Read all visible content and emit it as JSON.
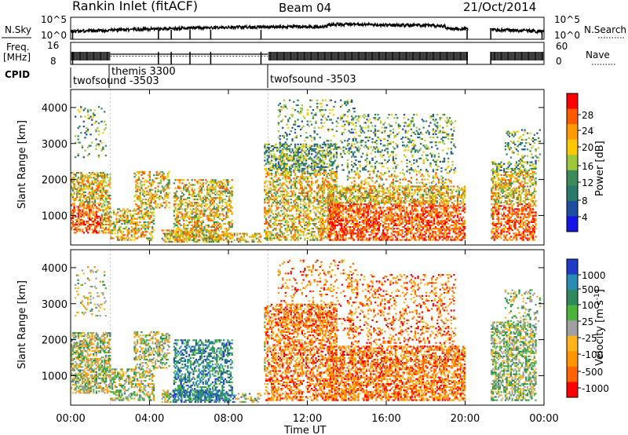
{
  "header": {
    "station": "Rankin Inlet (fitACF)",
    "beam": "Beam 04",
    "date": "21/Oct/2014"
  },
  "chart_data": [
    {
      "type": "line",
      "panel": "noise",
      "left_label": "N.Sky",
      "right_label": "N.Search",
      "left_ticks": [
        "10^5",
        "10^0"
      ],
      "right_ticks": [
        "10^5",
        "10^0"
      ],
      "scale": "log",
      "line_style": "solid black trace with data gaps near 00:00, 20:10-21:15"
    },
    {
      "type": "line",
      "panel": "frequency",
      "left_label_top": "Freq.",
      "left_label_unit": "[MHz]",
      "left_ticks": [
        "16",
        "8"
      ],
      "right_label": "Nave",
      "right_ticks": [
        "60",
        "0"
      ],
      "ylim": [
        8,
        16
      ],
      "right_ylim": [
        0,
        60
      ]
    },
    {
      "type": "table",
      "panel": "cpid",
      "label": "CPID",
      "segments": [
        {
          "name": "twofsound -3503",
          "start_hour": 0.0
        },
        {
          "name": "themis 3300",
          "start_hour": 2.0
        },
        {
          "name": "twofsound -3503",
          "start_hour": 10.0
        }
      ]
    },
    {
      "type": "heatmap",
      "panel": "power",
      "ylabel": "Slant Range [km]",
      "yticks": [
        1000,
        2000,
        3000,
        4000
      ],
      "ylim": [
        180,
        4500
      ],
      "colorbar_label": "Power [dB]",
      "colorbar_ticks": [
        28,
        24,
        20,
        16,
        12,
        8,
        4
      ],
      "colorbar_colors": [
        "#ff0000",
        "#ff5a00",
        "#ff9a00",
        "#ffc800",
        "#9ec83c",
        "#3c8c5a",
        "#2a7a6a",
        "#1e4ea0",
        "#1414e6"
      ]
    },
    {
      "type": "heatmap",
      "panel": "velocity",
      "ylabel": "Slant Range [km]",
      "yticks": [
        1000,
        2000,
        3000,
        4000
      ],
      "ylim": [
        180,
        4500
      ],
      "colorbar_label": "Velocity [m s",
      "colorbar_label_sup": "-1",
      "colorbar_label_end": "]",
      "colorbar_ticks": [
        "1000",
        "500",
        "100",
        "25",
        "-25",
        "-100",
        "-500",
        "-1000"
      ],
      "colorbar_colors": [
        "#1e3cc8",
        "#2a8cb4",
        "#2e8a5a",
        "#4ab43c",
        "#a0a0a0",
        "#ffb41e",
        "#ff9600",
        "#ff6400",
        "#ff0000"
      ]
    }
  ],
  "xaxis": {
    "ticks": [
      "00:00",
      "04:00",
      "08:00",
      "12:00",
      "16:00",
      "20:00",
      "00:00"
    ],
    "label": "Time UT"
  }
}
